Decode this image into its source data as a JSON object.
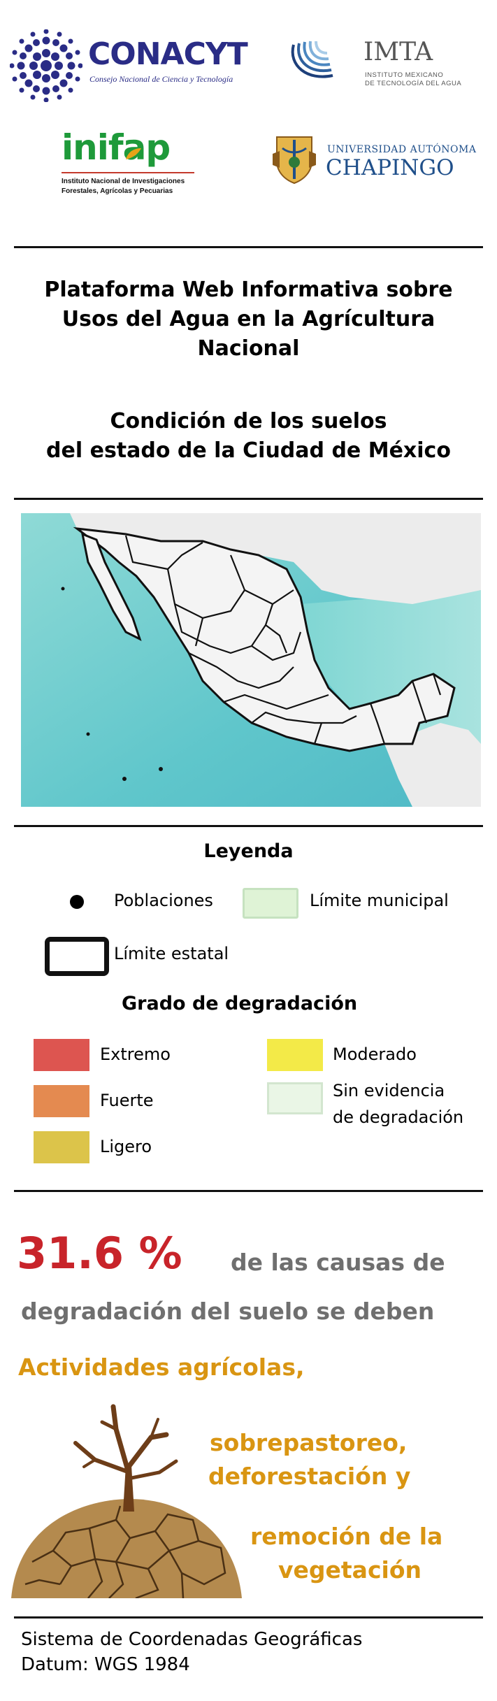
{
  "logos": {
    "conacyt": {
      "name": "CONACYT",
      "subtitle": "Consejo Nacional de Ciencia y Tecnología"
    },
    "imta": {
      "name": "IMTA",
      "subtitle_line1": "INSTITUTO MEXICANO",
      "subtitle_line2": "DE TECNOLOGÍA DEL AGUA"
    },
    "inifap": {
      "name": "inifap",
      "subtitle_line1": "Instituto Nacional de Investigaciones",
      "subtitle_line2": "Forestales, Agrícolas y Pecuarias"
    },
    "chapingo": {
      "line1": "UNIVERSIDAD AUTÓNOMA",
      "line2": "CHAPINGO"
    }
  },
  "title": {
    "line1": "Plataforma Web Informativa sobre",
    "line2": "Usos del Agua en la Agrícultura",
    "line3": "Nacional",
    "sub_line1": "Condición de los suelos",
    "sub_line2": "del estado de la Ciudad de México"
  },
  "legend": {
    "heading": "Leyenda",
    "poblaciones": "Poblaciones",
    "limite_municipal": "Límite municipal",
    "limite_estatal": "Límite estatal",
    "grado_heading": "Grado de degradación",
    "extremo": "Extremo",
    "moderado": "Moderado",
    "fuerte": "Fuerte",
    "sin_line1": "Sin evidencia",
    "sin_line2": "de degradación",
    "ligero": "Ligero"
  },
  "colors": {
    "extremo": "#dd5550",
    "fuerte": "#e48a50",
    "ligero": "#dcc44a",
    "moderado": "#f3ea48",
    "sin_evidencia": "#eaf6e6",
    "municipal_fill": "#dff3d6",
    "ocean": "#6fcfd0",
    "land": "#ececec",
    "accent_red": "#c8242a",
    "accent_orange": "#d99512"
  },
  "stats": {
    "percent": "31.6 %",
    "text1": "de las causas  de",
    "text2": "degradación del suelo se deben",
    "cause1": "Actividades agrícolas,",
    "cause2a": "sobrepastoreo,",
    "cause2b": "deforestación y",
    "cause3a": "remoción de la",
    "cause3b": "vegetación"
  },
  "footer": {
    "line1": "Sistema de Coordenadas Geográficas",
    "line2": "Datum: WGS 1984"
  }
}
